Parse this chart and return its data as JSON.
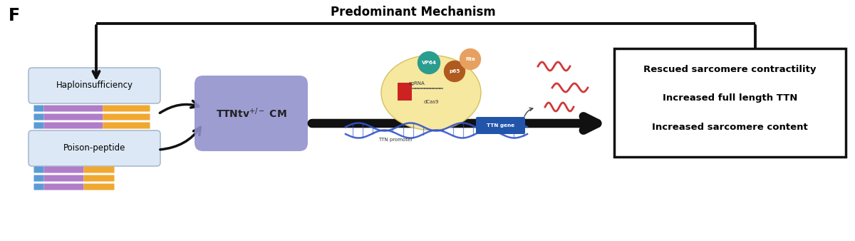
{
  "title": "Predominant Mechanism",
  "panel_label": "F",
  "bg_color": "#ffffff",
  "haplo_label": "Haploinsufficiency",
  "poison_label": "Poison-peptide",
  "outcome_lines": [
    "Rescued sarcomere contractility",
    "Increased full length TTN",
    "Increased sarcomere content"
  ],
  "bar_colors": [
    "#5b9bd5",
    "#b07dc9",
    "#f0a830"
  ],
  "box_fill": "#dce8f5",
  "box_edge": "#aabbd0",
  "ttn_fill": "#9090cc",
  "outcome_box_fill": "#ffffff",
  "outcome_box_edge": "#111111",
  "arrow_color": "#111111",
  "dna_color": "#3355cc",
  "mrna_color": "#cc2222",
  "ellipse_fill": "#f7e8a0",
  "ellipse_edge": "#d4c060",
  "vp64_color": "#2a9d8f",
  "p65_color": "#b05a20",
  "rta_color": "#d08090",
  "ttn_gene_color": "#2255aa"
}
